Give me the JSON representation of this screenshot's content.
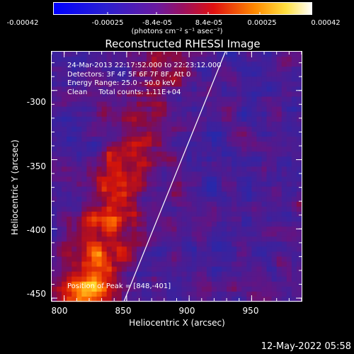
{
  "colorbar": {
    "ticks": [
      "-0.00042",
      "-0.00025",
      "-8.4e-05",
      "8.4e-05",
      "0.00025",
      "0.00042"
    ],
    "unit_label": "(photons cm⁻² s⁻¹ asec⁻²)"
  },
  "chart_data": {
    "type": "heatmap",
    "title": "Reconstructed RHESSI Image",
    "xlabel": "Heliocentric X (arcsec)",
    "ylabel": "Heliocentric Y (arcsec)",
    "xlim": [
      790,
      990
    ],
    "ylim": [
      -452,
      -272
    ],
    "x_ticks": [
      "800",
      "850",
      "900",
      "950"
    ],
    "y_ticks": [
      "-300",
      "-350",
      "-400",
      "-450"
    ],
    "colormap": "blue-purple-red-yellow-white",
    "color_range": [
      -0.00042,
      0.00042
    ],
    "info_lines": [
      "24-Mar-2013 22:17:52.000 to 22:23:12.000",
      "Detectors: 3F 4F 5F 6F 7F 8F, Att 0",
      "Energy Range: 25.0 - 50.0 keV",
      "Clean     Total counts: 1.11E+04"
    ],
    "peak_label": "Position of Peak = [848,-401]",
    "limb_line": [
      [
        848,
        -452
      ],
      [
        929,
        -272
      ]
    ]
  },
  "footer": {
    "timestamp": "12-May-2022 05:58"
  }
}
